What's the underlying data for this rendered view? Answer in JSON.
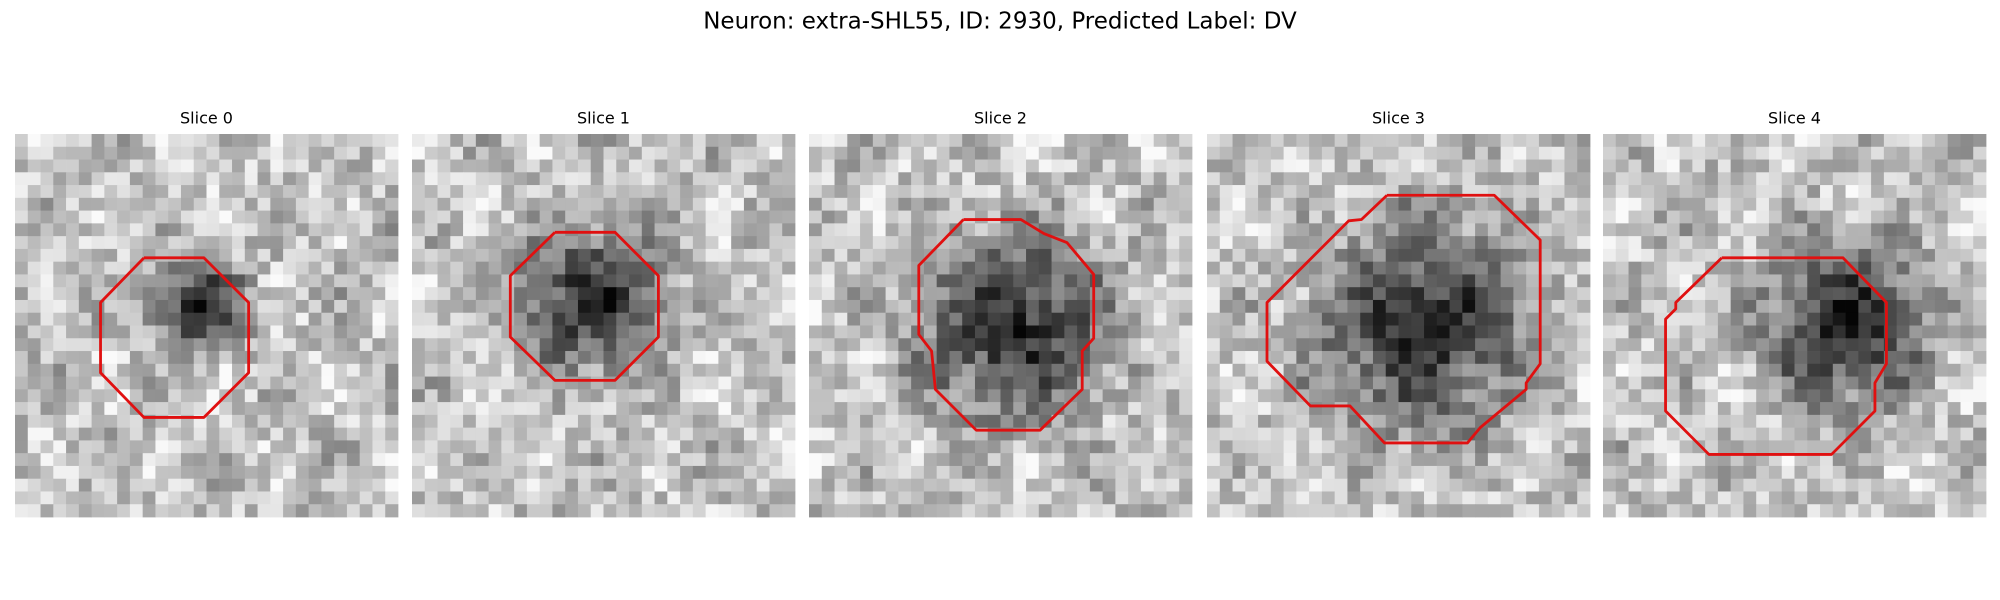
{
  "title": "Neuron: extra-SHL55, ID: 2930, Predicted Label: DV",
  "panels": [
    {
      "label": "Slice 0"
    },
    {
      "label": "Slice 1"
    },
    {
      "label": "Slice 2"
    },
    {
      "label": "Slice 3"
    },
    {
      "label": "Slice 4"
    }
  ]
}
